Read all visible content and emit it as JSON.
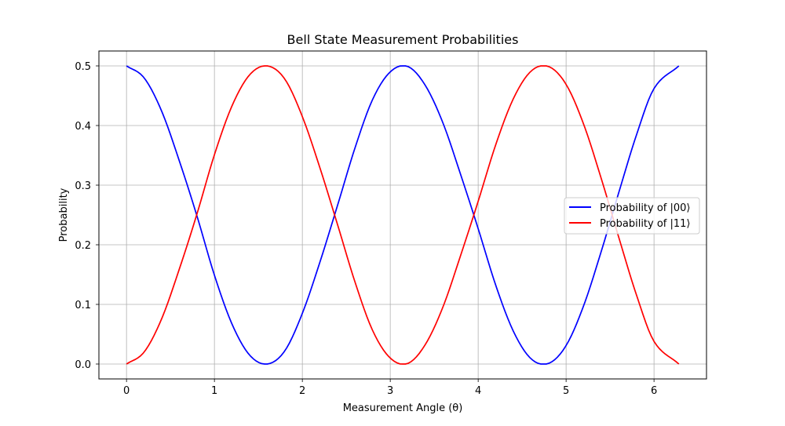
{
  "chart_data": {
    "type": "line",
    "title": "Bell State Measurement Probabilities",
    "xlabel": "Measurement Angle (θ)",
    "ylabel": "Probability",
    "xlim": [
      -0.314,
      6.597
    ],
    "ylim": [
      -0.025,
      0.525
    ],
    "xticks": [
      0,
      1,
      2,
      3,
      4,
      5,
      6
    ],
    "yticks": [
      0.0,
      0.1,
      0.2,
      0.3,
      0.4,
      0.5
    ],
    "ytick_labels": [
      "0.0",
      "0.1",
      "0.2",
      "0.3",
      "0.4",
      "0.5"
    ],
    "grid": true,
    "legend_position": "center-right",
    "x": [
      0.0,
      0.2,
      0.4,
      0.6,
      0.8,
      1.0,
      1.2,
      1.4,
      1.6,
      1.8,
      2.0,
      2.2,
      2.4,
      2.6,
      2.8,
      3.0,
      3.2,
      3.4,
      3.6,
      3.8,
      4.0,
      4.2,
      4.4,
      4.6,
      4.8,
      5.0,
      5.2,
      5.4,
      5.6,
      5.8,
      6.0,
      6.283
    ],
    "series": [
      {
        "name": "Probability of |00⟩",
        "color": "#0000ff",
        "values": [
          0.5,
          0.48,
          0.424,
          0.341,
          0.249,
          0.149,
          0.067,
          0.015,
          0.0,
          0.022,
          0.085,
          0.171,
          0.266,
          0.363,
          0.444,
          0.49,
          0.499,
          0.467,
          0.404,
          0.318,
          0.227,
          0.132,
          0.055,
          0.009,
          0.001,
          0.031,
          0.098,
          0.189,
          0.288,
          0.384,
          0.462,
          0.5
        ]
      },
      {
        "name": "Probability of |11⟩",
        "color": "#ff0000",
        "values": [
          0.0,
          0.02,
          0.076,
          0.159,
          0.251,
          0.351,
          0.433,
          0.485,
          0.5,
          0.478,
          0.415,
          0.329,
          0.234,
          0.137,
          0.056,
          0.01,
          0.001,
          0.033,
          0.096,
          0.182,
          0.273,
          0.368,
          0.445,
          0.491,
          0.499,
          0.469,
          0.402,
          0.311,
          0.212,
          0.116,
          0.038,
          0.0
        ]
      }
    ]
  }
}
